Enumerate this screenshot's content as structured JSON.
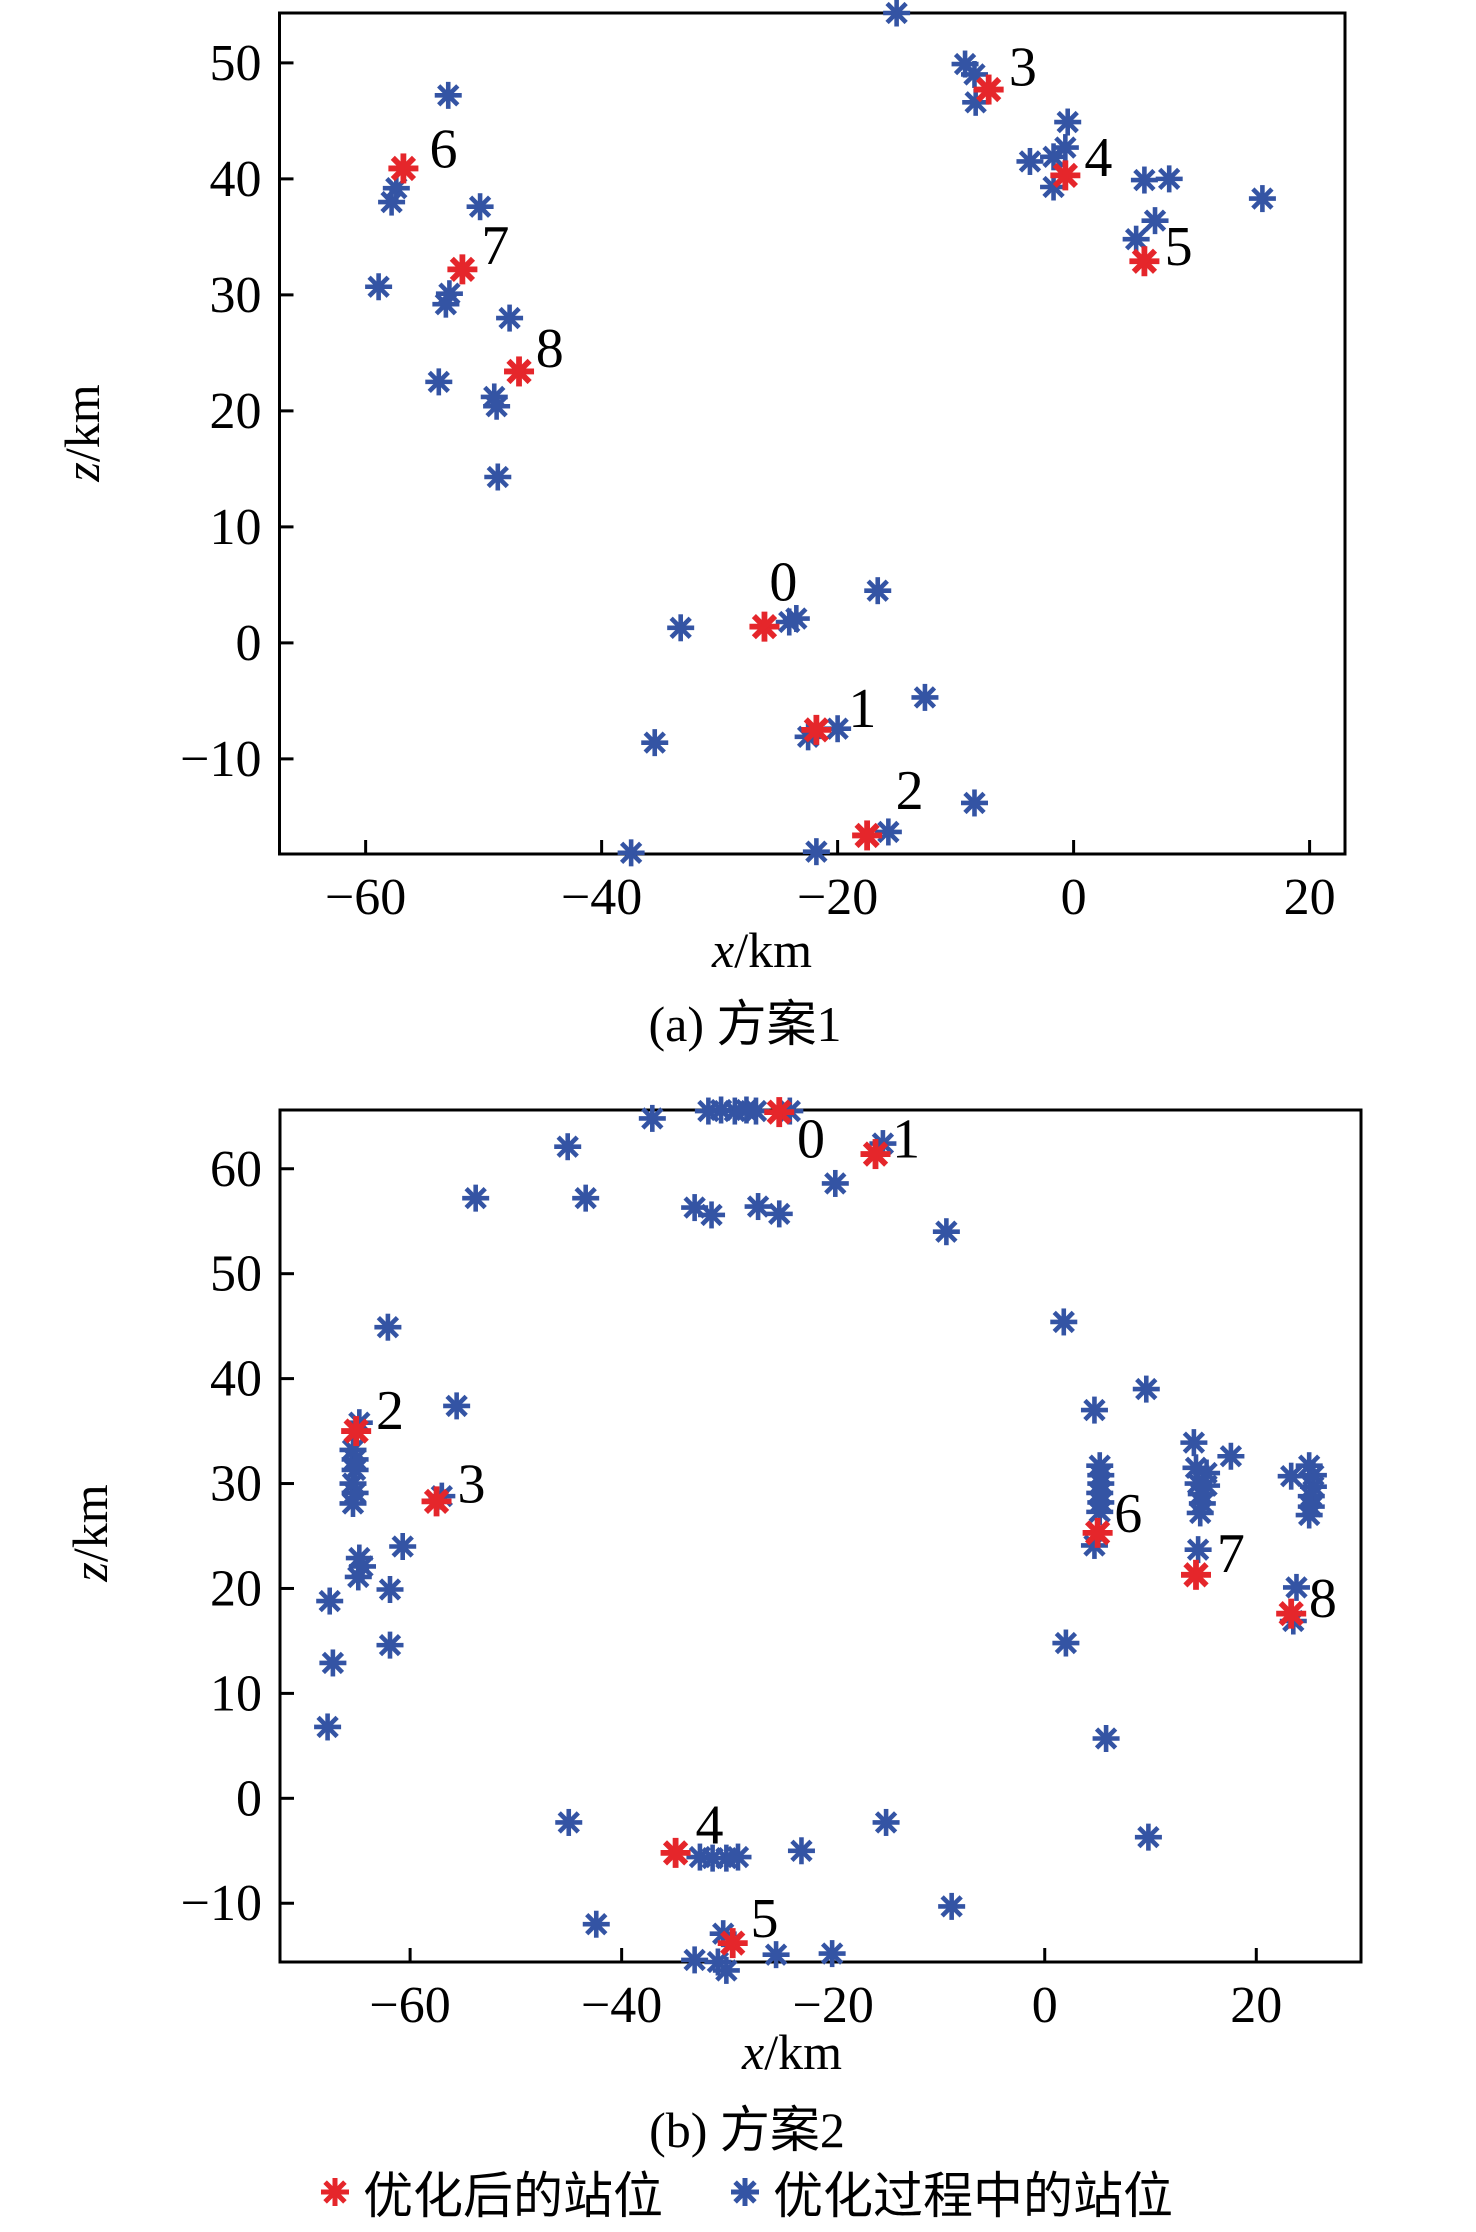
{
  "figure": {
    "background": "#ffffff",
    "axis_color": "#000000",
    "text_color": "#000000"
  },
  "legend": {
    "items": [
      {
        "label": "优化后的站位",
        "marker": "asterisk-icon",
        "color": "#e5262b"
      },
      {
        "label": "优化过程中的站位",
        "marker": "asterisk-icon",
        "color": "#3454a4"
      }
    ]
  },
  "chart_data": [
    {
      "type": "scatter",
      "caption": "(a) 方案1",
      "xlabel": "x/km",
      "ylabel": "z/km",
      "xlabel_var": "x",
      "xlabel_unit": "/km",
      "ylabel_var": "z",
      "ylabel_unit": "/km",
      "xlim": [
        -67.3,
        23.0
      ],
      "ylim": [
        -18.2,
        54.3
      ],
      "xticks": [
        -60,
        -40,
        -20,
        0,
        20
      ],
      "yticks": [
        -10,
        0,
        10,
        20,
        30,
        40,
        50
      ],
      "grid": false,
      "series": [
        {
          "name": "优化过程中的站位",
          "color": "#3454a4",
          "points": [
            [
              -15.0,
              54.3
            ],
            [
              -9.2,
              49.9
            ],
            [
              -8.4,
              49.0
            ],
            [
              -8.3,
              46.6
            ],
            [
              -0.5,
              44.9
            ],
            [
              -0.7,
              42.7
            ],
            [
              -1.7,
              41.9
            ],
            [
              -3.7,
              41.5
            ],
            [
              -1.7,
              39.3
            ],
            [
              6.0,
              39.9
            ],
            [
              8.1,
              40.0
            ],
            [
              16.0,
              38.3
            ],
            [
              6.9,
              36.4
            ],
            [
              5.3,
              34.8
            ],
            [
              -53.0,
              47.2
            ],
            [
              -57.4,
              39.2
            ],
            [
              -57.8,
              38.0
            ],
            [
              -50.3,
              37.6
            ],
            [
              -58.9,
              30.7
            ],
            [
              -52.9,
              30.1
            ],
            [
              -53.2,
              29.2
            ],
            [
              -47.8,
              28.0
            ],
            [
              -53.8,
              22.5
            ],
            [
              -49.1,
              21.2
            ],
            [
              -48.9,
              20.4
            ],
            [
              -48.8,
              14.3
            ],
            [
              -33.3,
              1.3
            ],
            [
              -24.1,
              1.8
            ],
            [
              -23.5,
              2.1
            ],
            [
              -16.6,
              4.5
            ],
            [
              -20.0,
              -7.4
            ],
            [
              -22.5,
              -8.1
            ],
            [
              -35.5,
              -8.6
            ],
            [
              -12.6,
              -4.7
            ],
            [
              -15.7,
              -16.3
            ],
            [
              -8.4,
              -13.8
            ],
            [
              -21.8,
              -18.0
            ],
            [
              -37.5,
              -18.1
            ]
          ]
        },
        {
          "name": "优化后的站位",
          "color": "#e5262b",
          "points": [
            {
              "station": "0",
              "x": -26.2,
              "y": 1.4
            },
            {
              "station": "1",
              "x": -21.8,
              "y": -7.5
            },
            {
              "station": "2",
              "x": -17.5,
              "y": -16.6
            },
            {
              "station": "3",
              "x": -7.2,
              "y": 47.7
            },
            {
              "station": "4",
              "x": -0.7,
              "y": 40.3
            },
            {
              "station": "5",
              "x": 6.0,
              "y": 32.9
            },
            {
              "station": "6",
              "x": -56.8,
              "y": 40.9
            },
            {
              "station": "7",
              "x": -51.8,
              "y": 32.2
            },
            {
              "station": "8",
              "x": -47.0,
              "y": 23.4
            }
          ]
        }
      ],
      "labels": [
        {
          "text": "0",
          "x": -24.6,
          "y": 5.3
        },
        {
          "text": "1",
          "x": -17.9,
          "y": -5.6
        },
        {
          "text": "2",
          "x": -13.9,
          "y": -12.7
        },
        {
          "text": "3",
          "x": -4.3,
          "y": 49.7
        },
        {
          "text": "4",
          "x": 2.1,
          "y": 41.9
        },
        {
          "text": "5",
          "x": 8.9,
          "y": 34.2
        },
        {
          "text": "6",
          "x": -53.4,
          "y": 42.6
        },
        {
          "text": "7",
          "x": -49.0,
          "y": 34.3
        },
        {
          "text": "8",
          "x": -44.4,
          "y": 25.4
        }
      ]
    },
    {
      "type": "scatter",
      "caption": "(b) 方案2",
      "xlabel": "x/km",
      "ylabel": "z/km",
      "xlabel_var": "x",
      "xlabel_unit": "/km",
      "ylabel_var": "z",
      "ylabel_unit": "/km",
      "xlim": [
        -72.3,
        29.9
      ],
      "ylim": [
        -15.6,
        65.6
      ],
      "xticks": [
        -60,
        -40,
        -20,
        0,
        20
      ],
      "yticks": [
        -10,
        0,
        10,
        20,
        30,
        40,
        50,
        60
      ],
      "grid": false,
      "series": [
        {
          "name": "优化过程中的站位",
          "color": "#3454a4",
          "points": [
            [
              -31.8,
              65.5
            ],
            [
              -30.6,
              65.6
            ],
            [
              -29.3,
              65.5
            ],
            [
              -28.2,
              65.6
            ],
            [
              -27.3,
              65.5
            ],
            [
              -24.1,
              65.5
            ],
            [
              -37.1,
              64.8
            ],
            [
              -45.1,
              62.1
            ],
            [
              -15.3,
              62.4
            ],
            [
              -53.8,
              57.2
            ],
            [
              -43.4,
              57.2
            ],
            [
              -33.1,
              56.3
            ],
            [
              -31.5,
              55.6
            ],
            [
              -27.1,
              56.4
            ],
            [
              -25.1,
              55.7
            ],
            [
              -19.8,
              58.6
            ],
            [
              -9.3,
              54.0
            ],
            [
              1.8,
              45.4
            ],
            [
              -62.1,
              44.9
            ],
            [
              -55.6,
              37.4
            ],
            [
              -64.8,
              35.8
            ],
            [
              -65.4,
              33.2
            ],
            [
              -65.2,
              32.3
            ],
            [
              -65.2,
              31.3
            ],
            [
              -65.4,
              30.0
            ],
            [
              -65.2,
              29.1
            ],
            [
              -65.4,
              28.1
            ],
            [
              -57.0,
              28.8
            ],
            [
              -60.7,
              24.0
            ],
            [
              -64.8,
              22.9
            ],
            [
              -64.5,
              22.1
            ],
            [
              -64.9,
              21.1
            ],
            [
              -61.9,
              19.9
            ],
            [
              -67.6,
              18.8
            ],
            [
              -61.9,
              14.6
            ],
            [
              -67.3,
              12.9
            ],
            [
              -67.8,
              6.8
            ],
            [
              9.6,
              39.0
            ],
            [
              4.7,
              37.0
            ],
            [
              5.2,
              31.7
            ],
            [
              5.3,
              30.8
            ],
            [
              5.3,
              30.0
            ],
            [
              5.2,
              29.1
            ],
            [
              5.3,
              28.2
            ],
            [
              5.2,
              27.3
            ],
            [
              4.7,
              24.1
            ],
            [
              14.1,
              33.9
            ],
            [
              17.6,
              32.6
            ],
            [
              14.3,
              31.5
            ],
            [
              15.3,
              31.0
            ],
            [
              14.5,
              30.0
            ],
            [
              15.3,
              29.8
            ],
            [
              14.8,
              29.0
            ],
            [
              14.9,
              28.1
            ],
            [
              14.7,
              27.2
            ],
            [
              14.5,
              23.7
            ],
            [
              23.3,
              30.7
            ],
            [
              25.0,
              31.7
            ],
            [
              25.4,
              30.8
            ],
            [
              25.4,
              29.7
            ],
            [
              25.2,
              28.8
            ],
            [
              25.2,
              27.8
            ],
            [
              25.0,
              27.0
            ],
            [
              23.8,
              20.1
            ],
            [
              23.5,
              16.9
            ],
            [
              2.0,
              14.8
            ],
            [
              5.8,
              5.7
            ],
            [
              9.8,
              -3.7
            ],
            [
              -45.0,
              -2.3
            ],
            [
              -32.6,
              -5.6
            ],
            [
              -31.4,
              -5.7
            ],
            [
              -30.1,
              -5.7
            ],
            [
              -29.0,
              -5.6
            ],
            [
              -23.0,
              -5.0
            ],
            [
              -15.0,
              -2.3
            ],
            [
              -8.8,
              -10.3
            ],
            [
              -42.4,
              -12.0
            ],
            [
              -30.4,
              -12.9
            ],
            [
              -33.1,
              -15.4
            ],
            [
              -30.9,
              -15.6
            ],
            [
              -30.1,
              -16.4
            ],
            [
              -25.4,
              -14.9
            ],
            [
              -20.1,
              -14.8
            ]
          ]
        },
        {
          "name": "优化后的站位",
          "color": "#e5262b",
          "points": [
            {
              "station": "0",
              "x": -25.1,
              "y": 65.4
            },
            {
              "station": "1",
              "x": -16.0,
              "y": 61.4
            },
            {
              "station": "2",
              "x": -65.1,
              "y": 35.0
            },
            {
              "station": "3",
              "x": -57.5,
              "y": 28.3
            },
            {
              "station": "4",
              "x": -34.9,
              "y": -5.2
            },
            {
              "station": "5",
              "x": -29.5,
              "y": -13.8
            },
            {
              "station": "6",
              "x": 5.0,
              "y": 25.3
            },
            {
              "station": "7",
              "x": 14.3,
              "y": 21.3
            },
            {
              "station": "8",
              "x": 23.3,
              "y": 17.6
            }
          ]
        }
      ],
      "labels": [
        {
          "text": "0",
          "x": -22.1,
          "y": 62.9
        },
        {
          "text": "1",
          "x": -13.1,
          "y": 62.9
        },
        {
          "text": "2",
          "x": -61.9,
          "y": 37.0
        },
        {
          "text": "3",
          "x": -54.2,
          "y": 30.0
        },
        {
          "text": "4",
          "x": -31.7,
          "y": -2.5
        },
        {
          "text": "5",
          "x": -26.5,
          "y": -11.4
        },
        {
          "text": "6",
          "x": 7.9,
          "y": 27.2
        },
        {
          "text": "7",
          "x": 17.6,
          "y": 23.4
        },
        {
          "text": "8",
          "x": 26.3,
          "y": 19.1
        }
      ]
    }
  ]
}
